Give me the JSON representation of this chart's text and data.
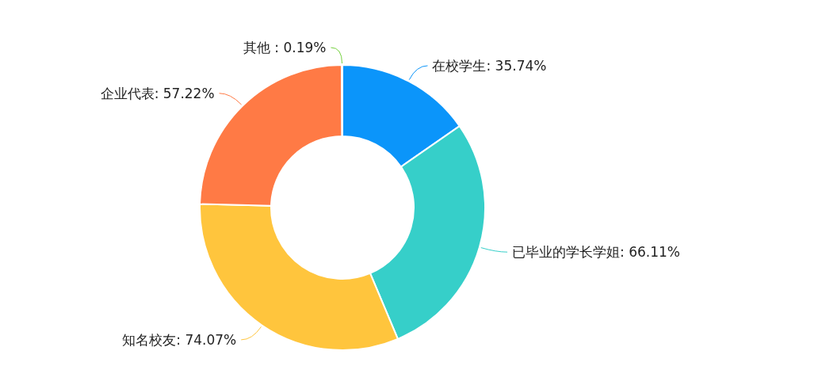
{
  "chart_data": {
    "type": "donut",
    "categories": [
      "在校学生",
      "已毕业的学长学姐",
      "知名校友",
      "企业代表",
      "其他 "
    ],
    "values": [
      35.74,
      66.11,
      74.07,
      57.22,
      0.19
    ],
    "value_labels": [
      "35.74%",
      "66.11%",
      "74.07%",
      "57.22%",
      "0.19%"
    ],
    "colors": [
      "#0b95fa",
      "#36cfc9",
      "#ffc53d",
      "#ff7a45",
      "#73d13d"
    ],
    "legend": false
  }
}
